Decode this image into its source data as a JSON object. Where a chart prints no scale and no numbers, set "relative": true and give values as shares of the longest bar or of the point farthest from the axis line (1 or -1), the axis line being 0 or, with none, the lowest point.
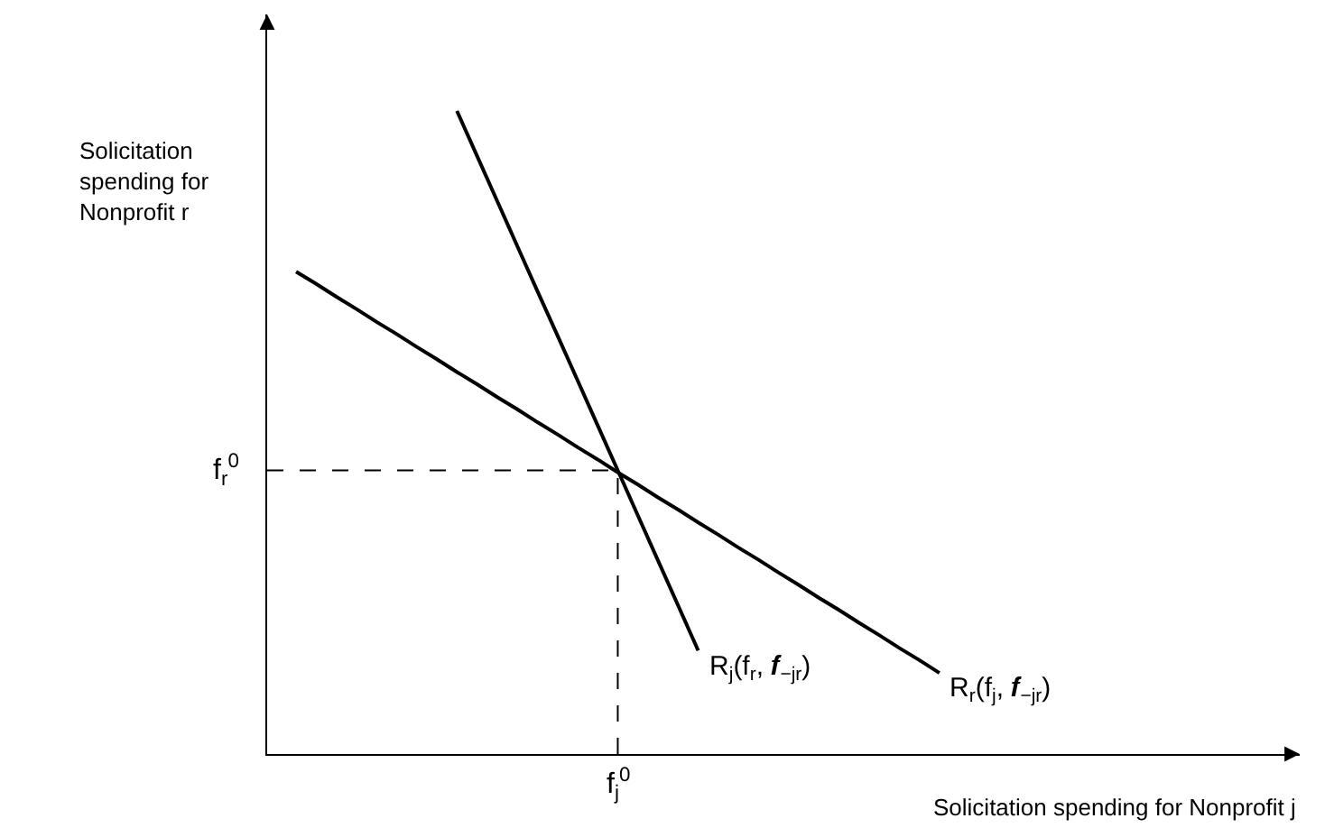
{
  "chart_data": {
    "type": "line",
    "relative": true,
    "xlabel": "Solicitation spending for Nonprofit j",
    "ylabel": "Solicitation spending for Nonprofit r",
    "grid": false,
    "legend": false,
    "marker": "none",
    "line_style": "solid",
    "categories": [
      null,
      null,
      null,
      null,
      null,
      null,
      null,
      null,
      null,
      null,
      null,
      null,
      null,
      null,
      null,
      null,
      null,
      null,
      null,
      null,
      null,
      null,
      null,
      null,
      null,
      null,
      null,
      null,
      null,
      null,
      null,
      null,
      null
    ],
    "series": [
      {
        "name": "R$_{r}$(f$_{j}$, 𝒇$_{−jr}$)",
        "color": "#000000",
        "values": [
          0.75,
          0.731,
          0.711,
          0.692,
          0.672,
          0.653,
          0.633,
          0.614,
          0.594,
          0.575,
          0.555,
          0.536,
          0.516,
          0.497,
          0.477,
          0.458,
          0.438,
          0.419,
          0.399,
          0.38,
          0.36,
          0.341,
          0.321,
          0.302,
          0.282,
          0.263,
          0.243,
          0.224,
          0.204,
          0.185,
          0.165,
          0.146,
          0.126
        ]
      },
      {
        "name": "R$_{j}$(f$_{r}$, 𝒇$_{−jr}$)",
        "color": "#000000",
        "values": [
          null,
          null,
          null,
          null,
          null,
          null,
          null,
          null,
          1,
          0.93,
          0.86,
          0.79,
          0.72,
          0.651,
          0.581,
          0.511,
          0.441,
          0.371,
          0.301,
          0.231,
          0.161,
          null,
          null,
          null,
          null,
          null,
          null,
          null,
          null,
          null,
          null,
          null,
          null
        ]
      }
    ],
    "annotations": [
      {
        "text": "f$_{j}$$^{0}$"
      }
    ],
    "ref_lines": [
      {
        "axis": "y",
        "value": 0.441,
        "label": "f$_{r}$$^{0}$",
        "line_style": "dashed",
        "color": "#000000"
      }
    ]
  }
}
